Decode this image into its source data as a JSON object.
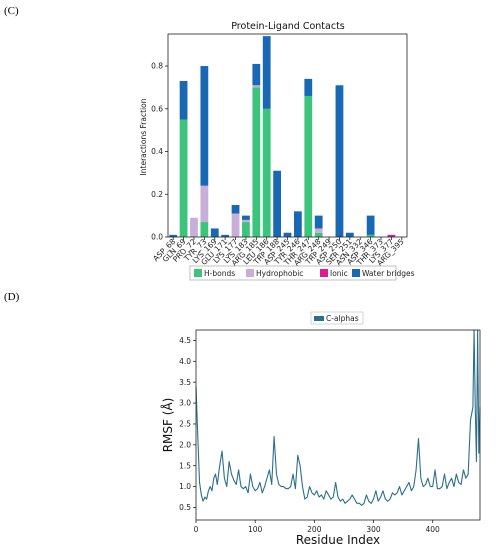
{
  "panel_c_label": "(C)",
  "panel_d_label": "(D)",
  "chart_data": [
    {
      "type": "bar",
      "stacked": true,
      "title": "Protein-Ligand Contacts",
      "ylabel": "Interactions Fraction",
      "xlabel": "",
      "ylim": [
        0,
        0.95
      ],
      "yticks": [
        "0.0",
        "0.2",
        "0.4",
        "0.6",
        "0.8"
      ],
      "ytick_values": [
        0,
        0.2,
        0.4,
        0.6,
        0.8
      ],
      "grid": false,
      "legend_position": "bottom",
      "categories": [
        "ASP_68",
        "GLN_69",
        "PRO_72",
        "TYR_73",
        "LYS_169",
        "GLU_171",
        "LYS_177",
        "LYS_183",
        "ARG_185",
        "LEU_186",
        "TRP_188",
        "ASP_245",
        "TYR_246",
        "THR_247",
        "ARG_248",
        "TRP_249",
        "ASP_250",
        "SER_251",
        "ASN_332",
        "ASP_346",
        "THR_373",
        "LYS_377",
        "ARG_395"
      ],
      "series": [
        {
          "name": "H-bonds",
          "color": "#3cc47c",
          "values": [
            0,
            0.55,
            0,
            0.07,
            0,
            0,
            0,
            0.07,
            0.7,
            0.6,
            0,
            0,
            0,
            0.66,
            0.02,
            0,
            0,
            0,
            0,
            0.01,
            0,
            0,
            0
          ]
        },
        {
          "name": "Hydrophobic",
          "color": "#c7afd7",
          "values": [
            0,
            0,
            0.09,
            0.17,
            0,
            0,
            0.11,
            0.01,
            0.01,
            0,
            0,
            0,
            0,
            0,
            0.02,
            0,
            0,
            0,
            0,
            0,
            0,
            0,
            0
          ]
        },
        {
          "name": "Ionic",
          "color": "#e01a8a",
          "values": [
            0,
            0,
            0,
            0,
            0,
            0,
            0,
            0,
            0,
            0,
            0,
            0,
            0,
            0,
            0,
            0,
            0,
            0,
            0,
            0,
            0,
            0.01,
            0
          ]
        },
        {
          "name": "Water bridges",
          "color": "#1868b4",
          "values": [
            0.01,
            0.18,
            0,
            0.56,
            0.04,
            0.01,
            0.04,
            0.02,
            0.1,
            0.34,
            0.31,
            0.02,
            0.12,
            0.08,
            0.06,
            0,
            0.71,
            0.02,
            0,
            0.09,
            0,
            0,
            0
          ]
        }
      ]
    },
    {
      "type": "line",
      "title": "",
      "xlabel": "Residue Index",
      "ylabel": "RMSF (Å)",
      "xlim": [
        0,
        480
      ],
      "ylim": [
        0.2,
        4.75
      ],
      "xticks": [
        "0",
        "100",
        "200",
        "300",
        "400"
      ],
      "xtick_values": [
        0,
        100,
        200,
        300,
        400
      ],
      "yticks": [
        "0.5",
        "1.0",
        "1.5",
        "2.0",
        "2.5",
        "3.0",
        "3.5",
        "4.0",
        "4.5"
      ],
      "ytick_values": [
        0.5,
        1.0,
        1.5,
        2.0,
        2.5,
        3.0,
        3.5,
        4.0,
        4.5
      ],
      "grid": false,
      "legend_position": "top-center",
      "series": [
        {
          "name": "C-alphas",
          "color": "#2b6f8c",
          "x": [
            0,
            3,
            6,
            9,
            12,
            15,
            18,
            21,
            24,
            27,
            30,
            33,
            36,
            40,
            44,
            48,
            52,
            56,
            60,
            64,
            68,
            72,
            76,
            80,
            84,
            88,
            92,
            96,
            100,
            104,
            108,
            112,
            116,
            120,
            124,
            128,
            132,
            136,
            140,
            144,
            148,
            152,
            156,
            160,
            164,
            168,
            172,
            176,
            180,
            184,
            188,
            192,
            196,
            200,
            204,
            208,
            212,
            216,
            220,
            224,
            228,
            232,
            236,
            240,
            244,
            248,
            252,
            256,
            260,
            264,
            268,
            272,
            276,
            280,
            284,
            288,
            292,
            296,
            300,
            304,
            308,
            312,
            316,
            320,
            324,
            328,
            332,
            336,
            340,
            344,
            348,
            352,
            356,
            360,
            364,
            368,
            372,
            376,
            380,
            384,
            388,
            392,
            396,
            400,
            404,
            408,
            412,
            416,
            420,
            424,
            428,
            432,
            436,
            440,
            444,
            448,
            452,
            456,
            460,
            464,
            468,
            470,
            472,
            474,
            476,
            478,
            480
          ],
          "y": [
            3.4,
            2.2,
            1.1,
            0.8,
            0.65,
            0.75,
            0.7,
            0.9,
            1.0,
            0.9,
            1.2,
            1.3,
            1.05,
            1.5,
            1.85,
            1.2,
            1.0,
            1.6,
            1.3,
            1.15,
            1.05,
            1.4,
            1.0,
            0.95,
            1.0,
            0.85,
            1.3,
            1.0,
            0.9,
            0.95,
            1.1,
            0.85,
            1.0,
            1.2,
            1.4,
            1.05,
            2.2,
            1.3,
            1.05,
            1.0,
            1.0,
            0.95,
            0.95,
            1.0,
            1.3,
            0.95,
            1.75,
            1.5,
            1.0,
            0.7,
            0.75,
            1.0,
            0.85,
            0.8,
            0.9,
            0.75,
            0.8,
            0.7,
            0.9,
            0.8,
            0.7,
            0.75,
            1.1,
            0.75,
            0.65,
            0.7,
            0.6,
            0.65,
            0.7,
            0.8,
            0.7,
            0.6,
            0.6,
            0.55,
            0.6,
            0.8,
            0.65,
            0.6,
            0.7,
            0.9,
            0.65,
            0.75,
            0.9,
            0.7,
            0.65,
            0.7,
            0.85,
            0.8,
            0.85,
            1.0,
            0.8,
            0.9,
            1.0,
            1.1,
            0.9,
            1.0,
            1.4,
            2.15,
            1.2,
            1.0,
            1.05,
            1.2,
            1.0,
            1.0,
            1.4,
            0.95,
            0.95,
            1.0,
            1.3,
            0.95,
            1.1,
            1.2,
            1.0,
            1.3,
            1.1,
            1.05,
            1.4,
            1.2,
            1.3,
            2.6,
            2.9,
            4.75,
            2.9,
            1.6,
            4.75,
            1.8,
            2.9
          ]
        }
      ]
    }
  ]
}
